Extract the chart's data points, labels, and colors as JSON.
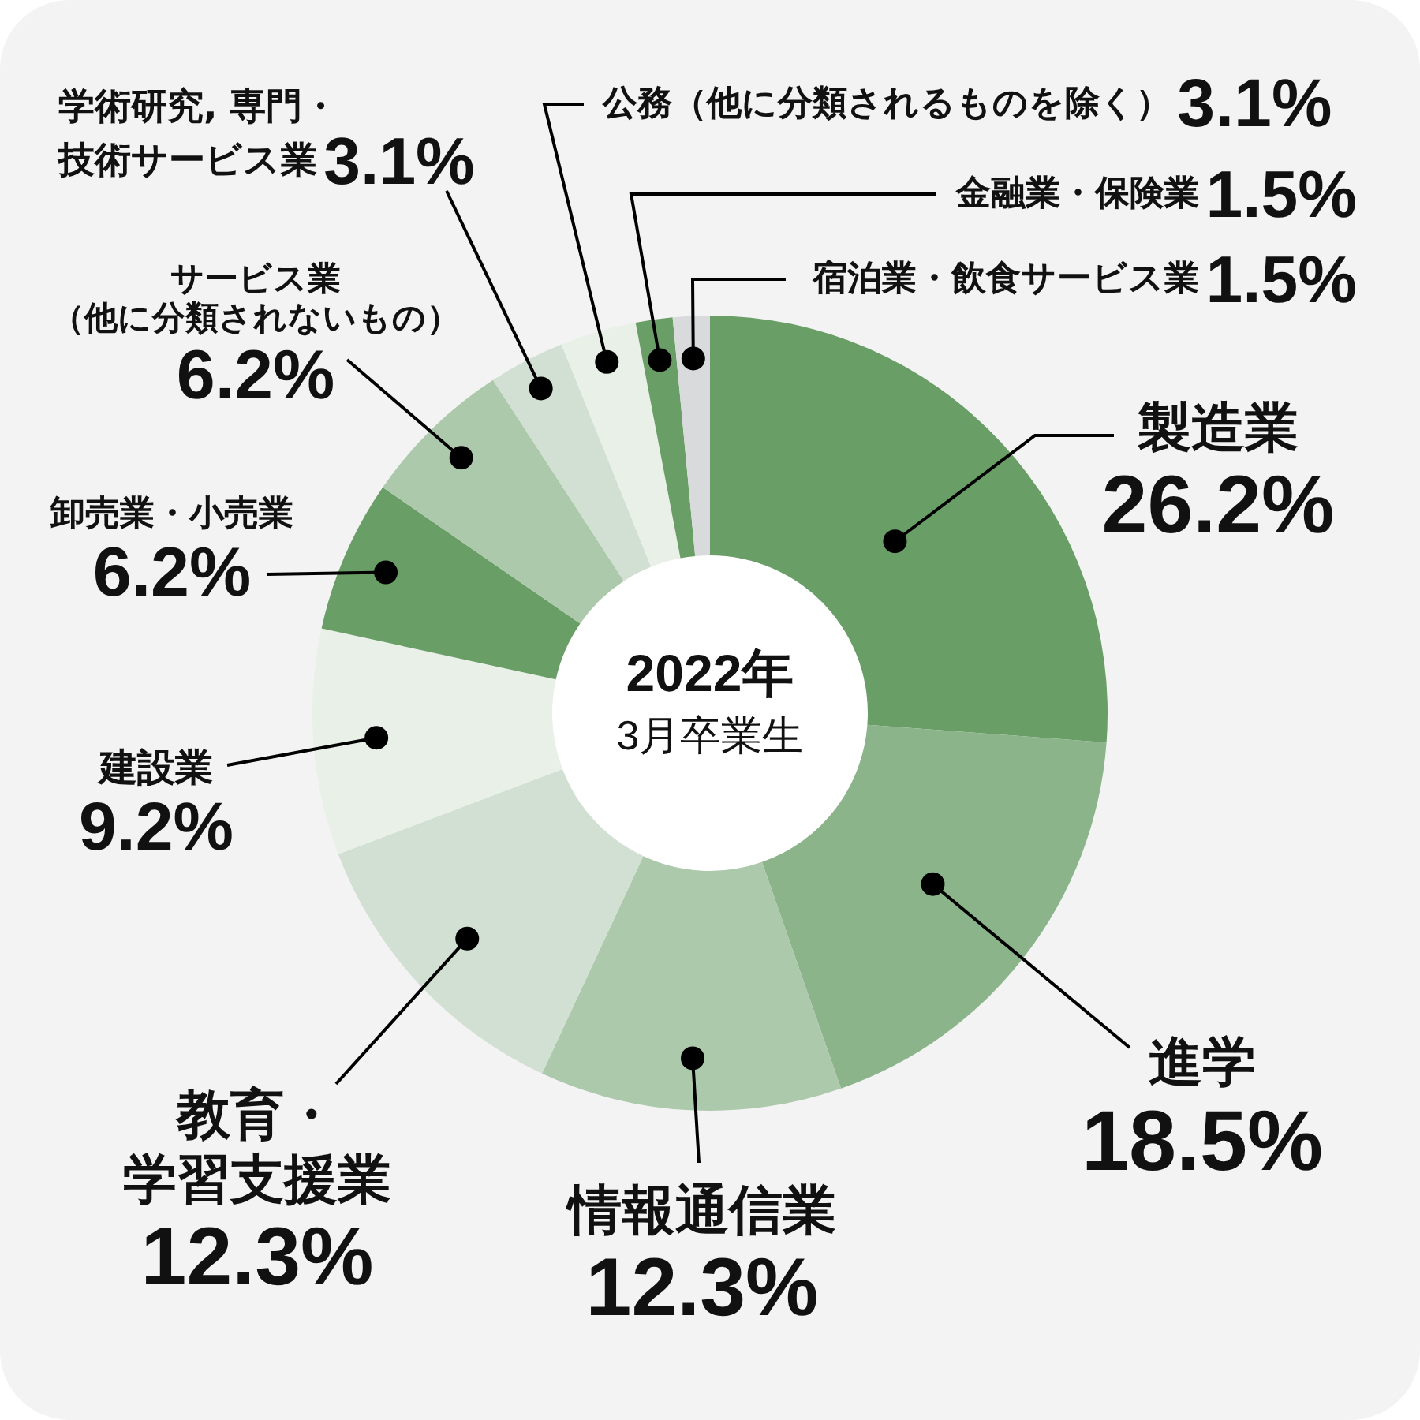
{
  "chart_data": {
    "type": "donut",
    "title": "2022年",
    "subtitle": "3月卒業生",
    "categories": [
      "製造業",
      "進学",
      "情報通信業",
      "教育・学習支援業",
      "建設業",
      "卸売業・小売業",
      "サービス業（他に分類されないもの）",
      "学術研究, 専門・技術サービス業",
      "公務（他に分類されるものを除く）",
      "金融業・保険業",
      "宿泊業・飲食サービス業"
    ],
    "values": [
      26.2,
      18.5,
      12.3,
      12.3,
      9.2,
      6.2,
      6.2,
      3.1,
      3.1,
      1.5,
      1.5
    ],
    "value_labels": [
      "26.2%",
      "18.5%",
      "12.3%",
      "12.3%",
      "9.2%",
      "6.2%",
      "6.2%",
      "3.1%",
      "3.1%",
      "1.5%",
      "1.5%"
    ],
    "colors": [
      "#699e66",
      "#8bb48a",
      "#adc9ab",
      "#d1e0d3",
      "#e8f0e8",
      "#699e66",
      "#adc9ab",
      "#d1e0d3",
      "#e8f0e8",
      "#699e66",
      "#d9dadc"
    ]
  }
}
